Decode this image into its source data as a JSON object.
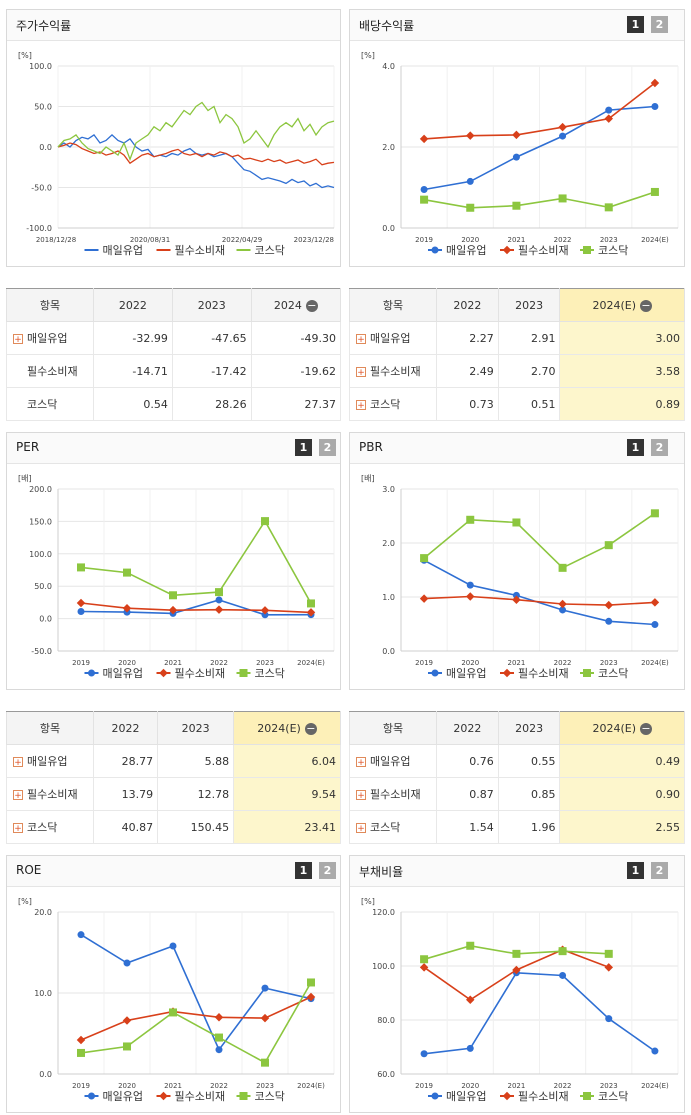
{
  "colors": {
    "maeil": "#2f6fd3",
    "pilsu": "#d8401a",
    "kosdaq": "#8cc63f"
  },
  "legend": [
    "매일유업",
    "필수소비재",
    "코스닥"
  ],
  "pagers": [
    "1",
    "2"
  ],
  "tables": [
    {
      "headers": [
        "항목",
        "2022",
        "2023",
        "2024"
      ],
      "rows": [
        {
          "label": "매일유업",
          "plus": true,
          "values": [
            "-32.99",
            "-47.65",
            "-49.30"
          ]
        },
        {
          "label": "필수소비재",
          "plus": false,
          "values": [
            "-14.71",
            "-17.42",
            "-19.62"
          ]
        },
        {
          "label": "코스닥",
          "plus": false,
          "values": [
            "0.54",
            "28.26",
            "27.37"
          ]
        }
      ]
    },
    {
      "headers": [
        "항목",
        "2022",
        "2023",
        "2024(E)"
      ],
      "rows": [
        {
          "label": "매일유업",
          "plus": true,
          "values": [
            "2.27",
            "2.91",
            "3.00"
          ]
        },
        {
          "label": "필수소비재",
          "plus": true,
          "values": [
            "2.49",
            "2.70",
            "3.58"
          ]
        },
        {
          "label": "코스닥",
          "plus": true,
          "values": [
            "0.73",
            "0.51",
            "0.89"
          ]
        }
      ]
    },
    {
      "headers": [
        "항목",
        "2022",
        "2023",
        "2024(E)"
      ],
      "rows": [
        {
          "label": "매일유업",
          "plus": true,
          "values": [
            "28.77",
            "5.88",
            "6.04"
          ]
        },
        {
          "label": "필수소비재",
          "plus": true,
          "values": [
            "13.79",
            "12.78",
            "9.54"
          ]
        },
        {
          "label": "코스닥",
          "plus": true,
          "values": [
            "40.87",
            "150.45",
            "23.41"
          ]
        }
      ]
    },
    {
      "headers": [
        "항목",
        "2022",
        "2023",
        "2024(E)"
      ],
      "rows": [
        {
          "label": "매일유업",
          "plus": true,
          "values": [
            "0.76",
            "0.55",
            "0.49"
          ]
        },
        {
          "label": "필수소비재",
          "plus": true,
          "values": [
            "0.87",
            "0.85",
            "0.90"
          ]
        },
        {
          "label": "코스닥",
          "plus": true,
          "values": [
            "1.54",
            "1.96",
            "2.55"
          ]
        }
      ]
    }
  ],
  "chart_data": [
    {
      "title": "주가수익률",
      "type": "line",
      "unit": "[%]",
      "ylim": [
        -100,
        100
      ],
      "yticks": [
        "100.0",
        "50.0",
        "0.0",
        "-50.0",
        "-100.0"
      ],
      "x_ticks": [
        "2018/12/28",
        "2020/08/31",
        "2022/04/29",
        "2023/12/28"
      ],
      "series": [
        {
          "name": "매일유업",
          "values": [
            0,
            5,
            0,
            8,
            12,
            10,
            15,
            5,
            8,
            15,
            8,
            5,
            10,
            0,
            -5,
            -3,
            -12,
            -10,
            -12,
            -8,
            -10,
            -5,
            -2,
            -8,
            -10,
            -8,
            -12,
            -10,
            -8,
            -12,
            -20,
            -28,
            -30,
            -35,
            -40,
            -38,
            -40,
            -42,
            -45,
            -40,
            -44,
            -42,
            -48,
            -45,
            -50,
            -48,
            -50
          ]
        },
        {
          "name": "필수소비재",
          "values": [
            0,
            2,
            5,
            3,
            -2,
            -5,
            -8,
            -6,
            -10,
            -8,
            -5,
            -10,
            -20,
            -15,
            -10,
            -8,
            -12,
            -10,
            -8,
            -5,
            -3,
            -8,
            -10,
            -8,
            -12,
            -8,
            -10,
            -6,
            -8,
            -12,
            -10,
            -15,
            -14,
            -16,
            -18,
            -15,
            -18,
            -16,
            -20,
            -18,
            -16,
            -20,
            -18,
            -15,
            -22,
            -20,
            -19
          ]
        },
        {
          "name": "코스닥",
          "values": [
            0,
            8,
            10,
            15,
            5,
            -2,
            -5,
            -8,
            0,
            -5,
            -10,
            5,
            -15,
            5,
            10,
            15,
            25,
            20,
            30,
            25,
            35,
            45,
            40,
            50,
            55,
            45,
            50,
            30,
            40,
            35,
            25,
            5,
            10,
            20,
            10,
            0,
            15,
            25,
            30,
            25,
            35,
            20,
            28,
            15,
            25,
            30,
            32
          ]
        }
      ]
    },
    {
      "title": "배당수익률",
      "type": "line",
      "unit": "[%]",
      "ylim": [
        0,
        4
      ],
      "yticks": [
        "4.0",
        "2.0",
        "0.0"
      ],
      "categories": [
        "2019",
        "2020",
        "2021",
        "2022",
        "2023",
        "2024(E)"
      ],
      "series": [
        {
          "name": "매일유업",
          "values": [
            0.95,
            1.15,
            1.75,
            2.27,
            2.91,
            3.0
          ]
        },
        {
          "name": "필수소비재",
          "values": [
            2.2,
            2.28,
            2.3,
            2.49,
            2.7,
            3.58
          ]
        },
        {
          "name": "코스닥",
          "values": [
            0.7,
            0.5,
            0.55,
            0.73,
            0.51,
            0.89
          ]
        }
      ]
    },
    {
      "title": "PER",
      "type": "line",
      "unit": "[배]",
      "ylim": [
        -50,
        200
      ],
      "yticks": [
        "200.0",
        "150.0",
        "100.0",
        "50.0",
        "0.0",
        "-50.0"
      ],
      "categories": [
        "2019",
        "2020",
        "2021",
        "2022",
        "2023",
        "2024(E)"
      ],
      "series": [
        {
          "name": "매일유업",
          "values": [
            11,
            10,
            8,
            28.77,
            5.88,
            6.04
          ]
        },
        {
          "name": "필수소비재",
          "values": [
            24,
            16,
            13,
            13.79,
            12.78,
            9.54
          ]
        },
        {
          "name": "코스닥",
          "values": [
            79,
            71,
            36,
            40.87,
            150.45,
            23.41
          ]
        }
      ]
    },
    {
      "title": "PBR",
      "type": "line",
      "unit": "[배]",
      "ylim": [
        0,
        3
      ],
      "yticks": [
        "3.0",
        "2.0",
        "1.0",
        "0.0"
      ],
      "categories": [
        "2019",
        "2020",
        "2021",
        "2022",
        "2023",
        "2024(E)"
      ],
      "series": [
        {
          "name": "매일유업",
          "values": [
            1.68,
            1.22,
            1.03,
            0.76,
            0.55,
            0.49
          ]
        },
        {
          "name": "필수소비재",
          "values": [
            0.97,
            1.01,
            0.95,
            0.87,
            0.85,
            0.9
          ]
        },
        {
          "name": "코스닥",
          "values": [
            1.72,
            2.43,
            2.38,
            1.54,
            1.96,
            2.55
          ]
        }
      ]
    },
    {
      "title": "ROE",
      "type": "line",
      "unit": "[%]",
      "ylim": [
        0,
        20
      ],
      "yticks": [
        "20.0",
        "10.0",
        "0.0"
      ],
      "categories": [
        "2019",
        "2020",
        "2021",
        "2022",
        "2023",
        "2024(E)"
      ],
      "series": [
        {
          "name": "매일유업",
          "values": [
            17.2,
            13.7,
            15.8,
            3.0,
            10.6,
            9.3
          ]
        },
        {
          "name": "필수소비재",
          "values": [
            4.2,
            6.6,
            7.7,
            7.0,
            6.9,
            9.5
          ]
        },
        {
          "name": "코스닥",
          "values": [
            2.6,
            3.4,
            7.6,
            4.5,
            1.4,
            11.3
          ]
        }
      ]
    },
    {
      "title": "부채비율",
      "type": "line",
      "unit": "[%]",
      "ylim": [
        60,
        120
      ],
      "yticks": [
        "120.0",
        "100.0",
        "80.0",
        "60.0"
      ],
      "categories": [
        "2019",
        "2020",
        "2021",
        "2022",
        "2023",
        "2024(E)"
      ],
      "series": [
        {
          "name": "매일유업",
          "values": [
            67.5,
            69.5,
            97.5,
            96.5,
            80.5,
            68.5
          ]
        },
        {
          "name": "필수소비재",
          "values": [
            99.5,
            87.5,
            98.5,
            106,
            99.5,
            null
          ]
        },
        {
          "name": "코스닥",
          "values": [
            102.5,
            107.5,
            104.5,
            105.5,
            104.5,
            null
          ]
        }
      ]
    }
  ]
}
